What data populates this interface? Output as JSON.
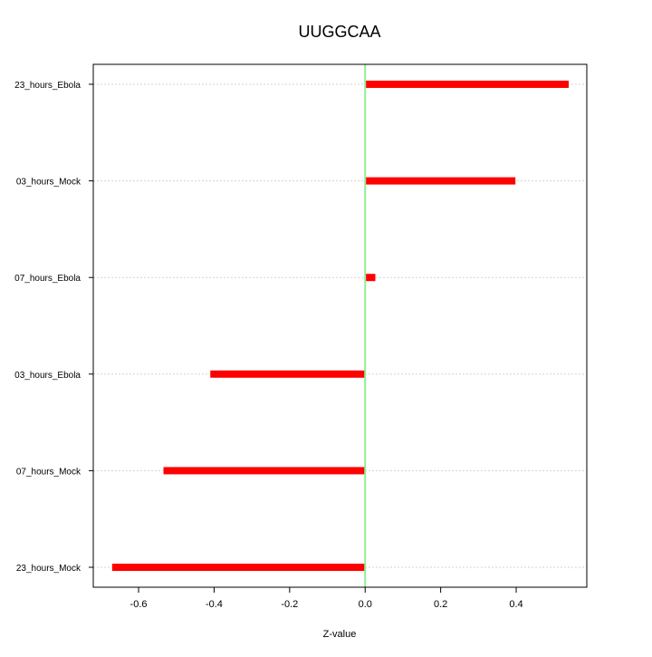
{
  "chart_data": {
    "type": "bar",
    "orientation": "horizontal",
    "title": "UUGGCAA",
    "xlabel": "Z-value",
    "ylabel": "",
    "categories": [
      "23_hours_Ebola",
      "03_hours_Mock",
      "07_hours_Ebola",
      "03_hours_Ebola",
      "07_hours_Mock",
      "23_hours_Mock"
    ],
    "values": [
      0.539,
      0.398,
      0.027,
      -0.41,
      -0.534,
      -0.67
    ],
    "xlim": [
      -0.72,
      0.587
    ],
    "xticks": [
      -0.6,
      -0.4,
      -0.2,
      0.0,
      0.2,
      0.4
    ],
    "xtick_labels": [
      "-0.6",
      "-0.4",
      "-0.2",
      "0.0",
      "0.2",
      "0.4"
    ],
    "grid": "horizontal dotted",
    "reference_line": 0,
    "colors": {
      "bar": "#ff0000",
      "reference_line": "#90ee90",
      "grid": "#d3d3d3"
    }
  }
}
